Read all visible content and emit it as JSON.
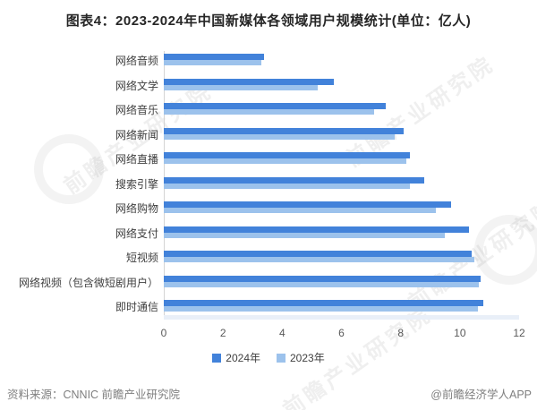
{
  "title": "图表4：2023-2024年中国新媒体各领域用户规模统计(单位：亿人)",
  "footer": {
    "source": "资料来源：CNNIC 前瞻产业研究院",
    "credit": "@前瞻经济学人APP"
  },
  "watermark": {
    "text": "前瞻产业研究院",
    "logo": "qianzhan-circle-logo"
  },
  "colors": {
    "bar_2024": "#4282da",
    "bar_2023": "#9cc2ec",
    "axis_line": "#d4d4d4",
    "category_text": "#404040",
    "tick_text": "#595959",
    "footer_text": "#7f7f7f",
    "title_text": "#262626"
  },
  "legend": [
    {
      "label": "2024年",
      "color_key": "bar_2024"
    },
    {
      "label": "2023年",
      "color_key": "bar_2023"
    }
  ],
  "chart_data": {
    "type": "bar",
    "orientation": "horizontal",
    "title": "图表4：2023-2024年中国新媒体各领域用户规模统计(单位：亿人)",
    "unit": "亿人",
    "categories": [
      "网络音频",
      "网络文学",
      "网络音乐",
      "网络新闻",
      "网络直播",
      "搜索引擎",
      "网络购物",
      "网络支付",
      "短视频",
      "网络视频（包含微短剧用户）",
      "即时通信"
    ],
    "series": [
      {
        "name": "2024年",
        "values": [
          3.4,
          5.75,
          7.5,
          8.1,
          8.3,
          8.8,
          9.7,
          10.3,
          10.4,
          10.7,
          10.8
        ]
      },
      {
        "name": "2023年",
        "values": [
          3.3,
          5.2,
          7.1,
          7.8,
          8.2,
          8.3,
          9.2,
          9.5,
          10.5,
          10.65,
          10.6
        ]
      }
    ],
    "xlim": [
      0,
      12
    ],
    "xticks": [
      0,
      2,
      4,
      6,
      8,
      10,
      12
    ],
    "grid": false,
    "legend_position": "bottom"
  }
}
